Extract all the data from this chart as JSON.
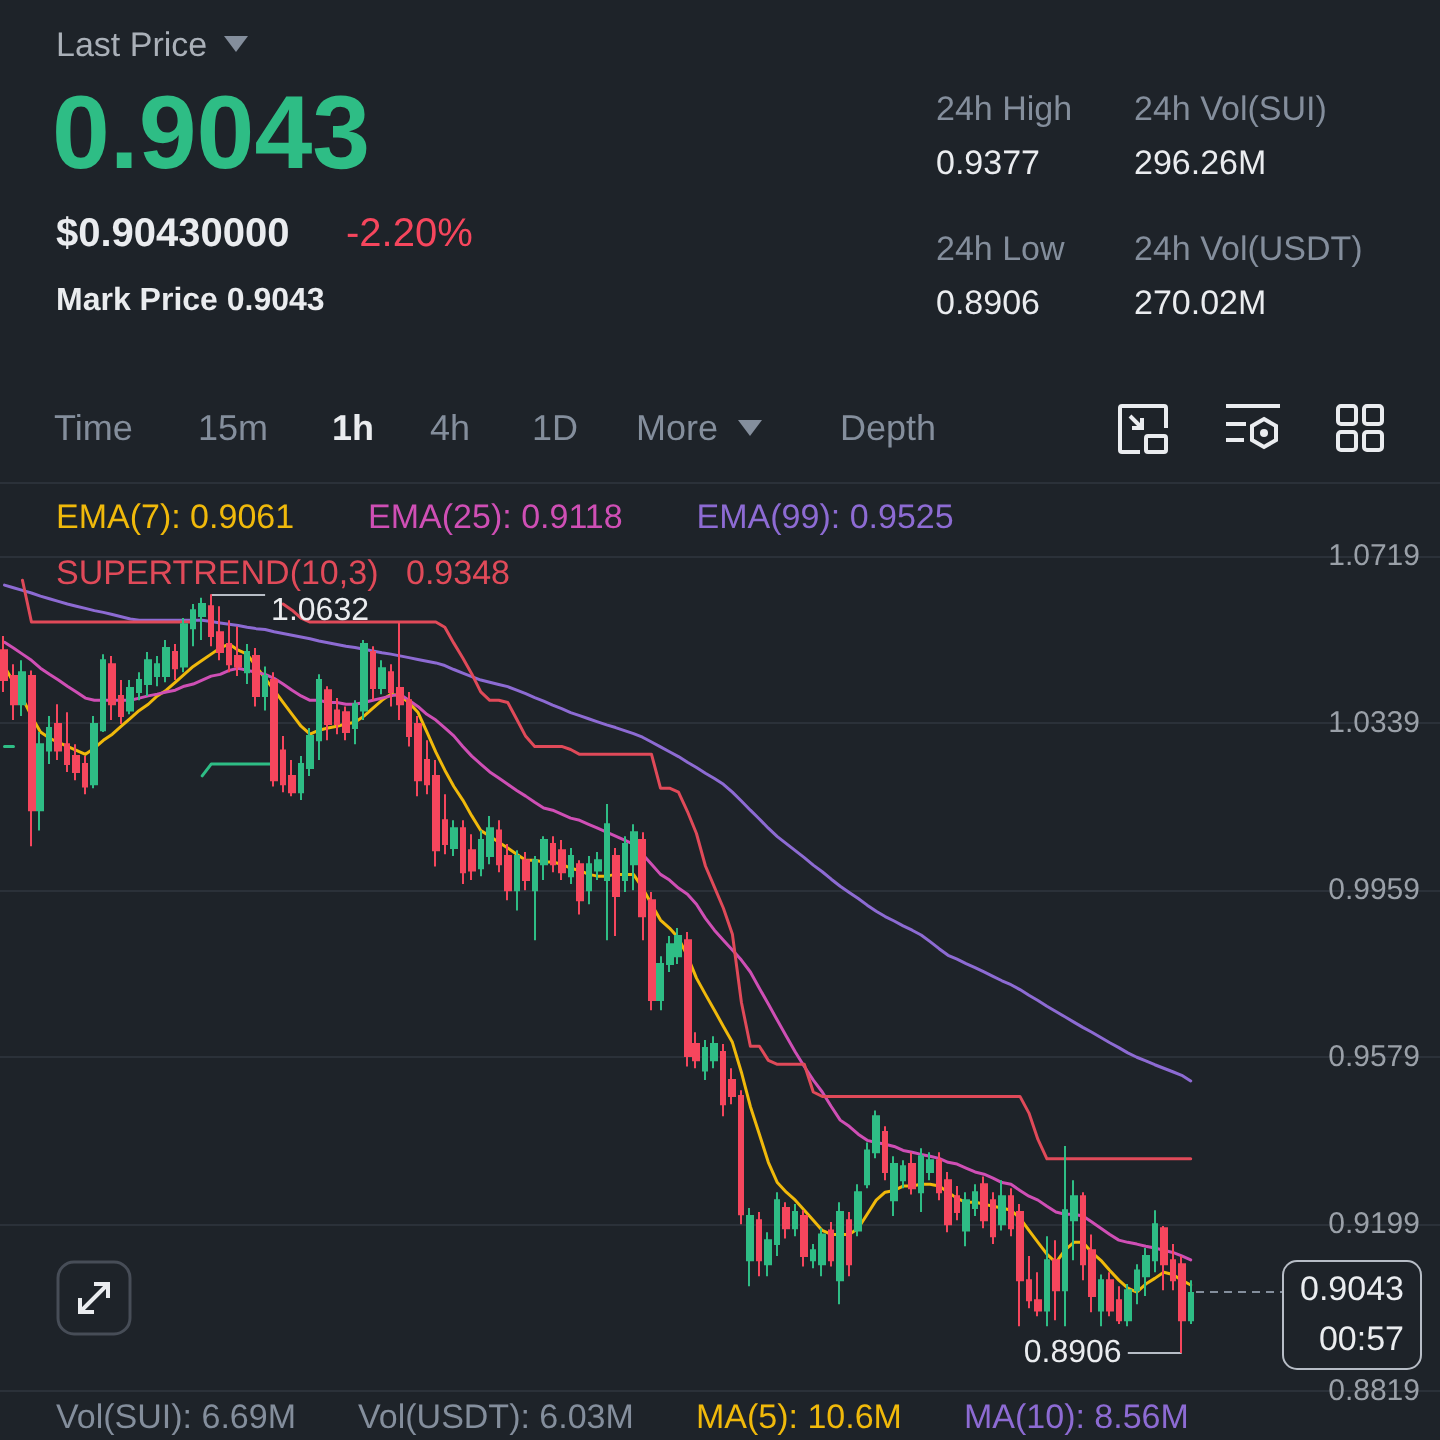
{
  "chart_data": {
    "type": "candlestick",
    "title": "Last Price",
    "subtitle": "0.9043",
    "annotations": [
      "$0.90430000",
      "-2.20%",
      "Mark Price 0.9043",
      "24h High",
      "0.9377",
      "24h Vol(SUI)",
      "296.26M",
      "24h Low",
      "0.8906",
      "24h Vol(USDT)",
      "270.02M",
      "Time",
      "15m",
      "1h",
      "4h",
      "1D",
      "More",
      "Depth",
      "0.9348",
      "Vol(SUI): 6.69M",
      "Vol(USDT): 6.03M",
      "MA(5): 10.6M",
      "MA(10): 8.56M",
      "1.0632",
      "0.8906",
      "0.9043\n00:57"
    ],
    "categories": [
      null,
      null,
      null,
      null,
      null,
      null,
      null,
      null,
      null,
      null,
      null,
      null,
      null,
      null,
      null,
      null,
      null,
      null,
      null,
      null,
      null,
      null,
      null,
      null,
      null,
      null,
      null,
      null,
      null,
      null,
      null,
      null,
      null,
      null,
      null,
      null,
      null,
      null,
      null,
      null,
      null,
      null,
      null,
      null,
      null,
      null,
      null,
      null,
      null,
      null,
      null,
      null,
      null,
      null,
      null,
      null,
      null,
      null,
      null,
      null,
      null,
      null,
      null,
      null,
      null,
      null,
      null,
      null,
      null,
      null,
      null,
      null,
      null,
      null,
      null,
      null,
      null,
      null,
      null,
      null,
      null,
      null,
      null,
      null,
      null,
      null,
      null,
      null,
      null,
      null,
      null,
      null,
      null,
      null,
      null,
      null,
      null,
      null,
      null,
      null,
      null,
      null,
      null,
      null,
      null,
      null,
      null,
      null,
      null,
      null,
      null,
      null,
      null,
      null,
      null,
      null,
      null,
      null,
      null,
      null,
      null,
      null,
      null,
      null,
      null,
      null,
      null,
      null,
      null,
      null,
      null,
      null,
      null
    ],
    "ohlc": [
      [
        1.0505,
        1.0537,
        1.041,
        1.0437
      ],
      [
        1.0446,
        1.0473,
        1.0346,
        1.0382
      ],
      [
        1.0382,
        1.0482,
        1.0355,
        1.0455
      ],
      [
        1.0446,
        1.0459,
        1.0059,
        1.0141
      ],
      [
        1.0141,
        1.0319,
        1.0095,
        1.0291
      ],
      [
        1.0277,
        1.0355,
        1.0246,
        1.0328
      ],
      [
        1.0337,
        1.0382,
        1.0255,
        1.0277
      ],
      [
        1.0291,
        1.0364,
        1.0228,
        1.0246
      ],
      [
        1.0264,
        1.0291,
        1.0209,
        1.0228
      ],
      [
        1.0246,
        1.0264,
        1.0177,
        1.0195
      ],
      [
        1.02,
        1.0355,
        1.0191,
        1.0337
      ],
      [
        1.0323,
        1.0496,
        1.0319,
        1.0482
      ],
      [
        1.0473,
        1.0492,
        1.0346,
        1.0382
      ],
      [
        1.0401,
        1.0437,
        1.0337,
        1.0355
      ],
      [
        1.0368,
        1.0437,
        1.0359,
        1.0419
      ],
      [
        1.041,
        1.0455,
        1.0391,
        1.0437
      ],
      [
        1.0428,
        1.0501,
        1.0401,
        1.0482
      ],
      [
        1.0446,
        1.0492,
        1.0423,
        1.0473
      ],
      [
        1.0446,
        1.0528,
        1.0432,
        1.051
      ],
      [
        1.0501,
        1.0519,
        1.0437,
        1.0464
      ],
      [
        1.0468,
        1.0578,
        1.0455,
        1.0564
      ],
      [
        1.0555,
        1.061,
        1.0514,
        1.0596
      ],
      [
        1.0583,
        1.0624,
        1.0528,
        1.061
      ],
      [
        1.0605,
        1.0632,
        1.0514,
        1.0537
      ],
      [
        1.0546,
        1.0605,
        1.0482,
        1.0501
      ],
      [
        1.0519,
        1.0573,
        1.0455,
        1.0473
      ],
      [
        1.0492,
        1.0559,
        1.0446,
        1.0468
      ],
      [
        1.0455,
        1.0519,
        1.0428,
        1.0501
      ],
      [
        1.0492,
        1.051,
        1.0377,
        1.0401
      ],
      [
        1.0401,
        1.0468,
        1.0368,
        1.0446
      ],
      [
        1.0437,
        1.0455,
        1.0195,
        1.0209
      ],
      [
        1.0277,
        1.031,
        1.0182,
        1.02
      ],
      [
        1.0219,
        1.0255,
        1.0173,
        1.0182
      ],
      [
        1.0182,
        1.0264,
        1.0164,
        1.0246
      ],
      [
        1.0237,
        1.0328,
        1.0219,
        1.031
      ],
      [
        1.03,
        1.045,
        1.0255,
        1.0437
      ],
      [
        1.0414,
        1.0423,
        1.03,
        1.0337
      ],
      [
        1.0368,
        1.0396,
        1.0314,
        1.0337
      ],
      [
        1.0364,
        1.0377,
        1.03,
        1.0319
      ],
      [
        1.0328,
        1.0391,
        1.0291,
        1.0382
      ],
      [
        1.0368,
        1.0528,
        1.0346,
        1.0519
      ],
      [
        1.0501,
        1.0514,
        1.0391,
        1.0419
      ],
      [
        1.0419,
        1.0482,
        1.0405,
        1.0464
      ],
      [
        1.0455,
        1.0473,
        1.0377,
        1.041
      ],
      [
        1.0419,
        1.0568,
        1.0346,
        1.0382
      ],
      [
        1.0391,
        1.041,
        1.0286,
        1.031
      ],
      [
        1.0337,
        1.0355,
        1.0173,
        1.0209
      ],
      [
        1.0255,
        1.03,
        1.0177,
        1.02
      ],
      [
        1.0219,
        1.0255,
        1.0013,
        1.005
      ],
      [
        1.0118,
        1.0177,
        1.0041,
        1.0064
      ],
      [
        1.0055,
        1.0118,
        1.0037,
        1.01
      ],
      [
        1.01,
        1.0118,
        0.9973,
        1.0
      ],
      [
        1.005,
        1.0086,
        0.9982,
        1.0004
      ],
      [
        1.0009,
        1.0095,
        0.9991,
        1.0073
      ],
      [
        1.0037,
        1.0128,
        1.0018,
        1.01
      ],
      [
        1.0095,
        1.0118,
        1.0,
        1.0018
      ],
      [
        1.0037,
        1.0064,
        0.9936,
        0.9959
      ],
      [
        0.9959,
        1.005,
        0.9913,
        1.0037
      ],
      [
        1.0027,
        1.0046,
        0.9959,
        0.9982
      ],
      [
        0.9959,
        1.0037,
        0.9845,
        1.0027
      ],
      [
        1.0018,
        1.0082,
        0.9982,
        1.0073
      ],
      [
        1.0064,
        1.0082,
        1.0,
        1.0018
      ],
      [
        1.005,
        1.0073,
        0.9982,
        1.0
      ],
      [
        0.9991,
        1.0055,
        0.9973,
        1.0037
      ],
      [
        1.0018,
        1.0027,
        0.9904,
        0.9936
      ],
      [
        0.9959,
        1.0037,
        0.9927,
        1.0018
      ],
      [
        1.0004,
        1.0046,
        0.9982,
        1.0027
      ],
      [
        0.9982,
        1.0155,
        0.9845,
        1.0109
      ],
      [
        1.0037,
        1.0055,
        0.9855,
        0.9946
      ],
      [
        0.9982,
        1.0082,
        0.9955,
        1.0064
      ],
      [
        1.0018,
        1.0109,
        0.9959,
        1.0091
      ],
      [
        1.0073,
        1.0091,
        0.9845,
        0.99
      ],
      [
        0.9936,
        0.9955,
        0.9686,
        0.9709
      ],
      [
        0.9709,
        0.9809,
        0.9686,
        0.9791
      ],
      [
        0.9791,
        0.9855,
        0.9773,
        0.9836
      ],
      [
        0.9809,
        0.9873,
        0.9791,
        0.9855
      ],
      [
        0.9845,
        0.9864,
        0.9558,
        0.9582
      ],
      [
        0.9609,
        0.9636,
        0.9554,
        0.9572
      ],
      [
        0.9549,
        0.9618,
        0.9527,
        0.96
      ],
      [
        0.9572,
        0.9627,
        0.9554,
        0.9609
      ],
      [
        0.9591,
        0.9609,
        0.9445,
        0.9472
      ],
      [
        0.9527,
        0.9554,
        0.9472,
        0.9491
      ],
      [
        0.9491,
        0.9504,
        0.9199,
        0.9222
      ],
      [
        0.9117,
        0.9236,
        0.9058,
        0.9218
      ],
      [
        0.9208,
        0.9227,
        0.9081,
        0.9117
      ],
      [
        0.9108,
        0.9181,
        0.9081,
        0.9163
      ],
      [
        0.9154,
        0.9272,
        0.9127,
        0.9254
      ],
      [
        0.9236,
        0.9249,
        0.9167,
        0.919
      ],
      [
        0.919,
        0.9245,
        0.9172,
        0.9227
      ],
      [
        0.9218,
        0.9231,
        0.9103,
        0.9127
      ],
      [
        0.9117,
        0.9154,
        0.9099,
        0.914
      ],
      [
        0.9108,
        0.919,
        0.9081,
        0.9176
      ],
      [
        0.9185,
        0.9204,
        0.9103,
        0.9117
      ],
      [
        0.9072,
        0.9249,
        0.9017,
        0.9227
      ],
      [
        0.9208,
        0.9227,
        0.9081,
        0.9108
      ],
      [
        0.9185,
        0.929,
        0.9172,
        0.9272
      ],
      [
        0.929,
        0.9385,
        0.9281,
        0.9367
      ],
      [
        0.9363,
        0.9458,
        0.9349,
        0.9445
      ],
      [
        0.9409,
        0.9422,
        0.9299,
        0.9318
      ],
      [
        0.9254,
        0.9354,
        0.9218,
        0.9336
      ],
      [
        0.9299,
        0.9345,
        0.9281,
        0.9331
      ],
      [
        0.9336,
        0.9363,
        0.9267,
        0.9281
      ],
      [
        0.9272,
        0.9372,
        0.9227,
        0.9354
      ],
      [
        0.9318,
        0.9363,
        0.9299,
        0.9345
      ],
      [
        0.9345,
        0.9363,
        0.9254,
        0.9272
      ],
      [
        0.9299,
        0.9318,
        0.9181,
        0.9199
      ],
      [
        0.9263,
        0.9286,
        0.9208,
        0.9227
      ],
      [
        0.9185,
        0.9272,
        0.9149,
        0.9254
      ],
      [
        0.9236,
        0.929,
        0.9218,
        0.9272
      ],
      [
        0.929,
        0.9308,
        0.919,
        0.9208
      ],
      [
        0.9254,
        0.9272,
        0.9154,
        0.9172
      ],
      [
        0.9199,
        0.9299,
        0.9185,
        0.9263
      ],
      [
        0.9263,
        0.9281,
        0.9172,
        0.919
      ],
      [
        0.9227,
        0.9245,
        0.8967,
        0.9072
      ],
      [
        0.9072,
        0.9127,
        0.9008,
        0.9026
      ],
      [
        0.9026,
        0.909,
        0.899,
        0.9003
      ],
      [
        0.9003,
        0.9172,
        0.8967,
        0.9117
      ],
      [
        0.9117,
        0.9163,
        0.8981,
        0.9049
      ],
      [
        0.9049,
        0.9377,
        0.8967,
        0.9231
      ],
      [
        0.9208,
        0.9299,
        0.9117,
        0.9263
      ],
      [
        0.9263,
        0.9272,
        0.9072,
        0.9108
      ],
      [
        0.914,
        0.9176,
        0.8999,
        0.9036
      ],
      [
        0.9003,
        0.9085,
        0.8967,
        0.9072
      ],
      [
        0.9072,
        0.909,
        0.899,
        0.9003
      ],
      [
        0.9026,
        0.9058,
        0.8972,
        0.8981
      ],
      [
        0.8981,
        0.9063,
        0.8967,
        0.9049
      ],
      [
        0.9049,
        0.9108,
        0.9017,
        0.9094
      ],
      [
        0.9081,
        0.9145,
        0.9036,
        0.9127
      ],
      [
        0.9117,
        0.9231,
        0.909,
        0.9199
      ],
      [
        0.919,
        0.9195,
        0.9049,
        0.9108
      ],
      [
        0.9117,
        0.9154,
        0.9049,
        0.9072
      ],
      [
        0.9108,
        0.9127,
        0.8906,
        0.8981
      ],
      [
        0.8981,
        0.9072,
        0.8972,
        0.9043
      ]
    ],
    "colors": [
      "#f6465d",
      "#f6465d",
      "#2ebd85",
      "#f6465d",
      "#2ebd85",
      "#2ebd85",
      "#f6465d",
      "#f6465d",
      "#f6465d",
      "#f6465d",
      "#2ebd85",
      "#2ebd85",
      "#f6465d",
      "#f6465d",
      "#2ebd85",
      "#2ebd85",
      "#2ebd85",
      "#2ebd85",
      "#2ebd85",
      "#f6465d",
      "#2ebd85",
      "#2ebd85",
      "#2ebd85",
      "#f6465d",
      "#f6465d",
      "#f6465d",
      "#f6465d",
      "#2ebd85",
      "#f6465d",
      "#2ebd85",
      "#f6465d",
      "#f6465d",
      "#f6465d",
      "#2ebd85",
      "#2ebd85",
      "#2ebd85",
      "#f6465d",
      "#f6465d",
      "#f6465d",
      "#2ebd85",
      "#2ebd85",
      "#f6465d",
      "#2ebd85",
      "#f6465d",
      "#f6465d",
      "#f6465d",
      "#f6465d",
      "#f6465d",
      "#f6465d",
      "#f6465d",
      "#2ebd85",
      "#f6465d",
      "#f6465d",
      "#2ebd85",
      "#2ebd85",
      "#f6465d",
      "#f6465d",
      "#2ebd85",
      "#f6465d",
      "#2ebd85",
      "#2ebd85",
      "#f6465d",
      "#f6465d",
      "#2ebd85",
      "#f6465d",
      "#2ebd85",
      "#2ebd85",
      "#2ebd85",
      "#f6465d",
      "#2ebd85",
      "#2ebd85",
      "#f6465d",
      "#f6465d",
      "#2ebd85",
      "#2ebd85",
      "#2ebd85",
      "#f6465d",
      "#f6465d",
      "#2ebd85",
      "#2ebd85",
      "#f6465d",
      "#f6465d",
      "#f6465d",
      "#2ebd85",
      "#f6465d",
      "#2ebd85",
      "#2ebd85",
      "#f6465d",
      "#2ebd85",
      "#f6465d",
      "#2ebd85",
      "#2ebd85",
      "#f6465d",
      "#2ebd85",
      "#f6465d",
      "#2ebd85",
      "#2ebd85",
      "#2ebd85",
      "#f6465d",
      "#2ebd85",
      "#2ebd85",
      "#f6465d",
      "#2ebd85",
      "#2ebd85",
      "#f6465d",
      "#f6465d",
      "#f6465d",
      "#2ebd85",
      "#2ebd85",
      "#f6465d",
      "#f6465d",
      "#2ebd85",
      "#f6465d",
      "#f6465d",
      "#f6465d",
      "#f6465d",
      "#2ebd85",
      "#f6465d",
      "#2ebd85",
      "#2ebd85",
      "#f6465d",
      "#f6465d",
      "#2ebd85",
      "#f6465d",
      "#f6465d",
      "#2ebd85",
      "#2ebd85",
      "#2ebd85",
      "#2ebd85",
      "#f6465d",
      "#f6465d",
      "#f6465d",
      "#2ebd85"
    ],
    "series": [
      {
        "type": "line",
        "name": "EMA(7): 0.9061",
        "color": "#f0b90b",
        "values": [
          1.0468,
          1.0432,
          1.0396,
          1.0355,
          1.0319,
          1.0305,
          1.0295,
          1.0286,
          1.0277,
          1.0268,
          1.0282,
          1.03,
          1.0314,
          1.0332,
          1.035,
          1.0368,
          1.0382,
          1.0401,
          1.0414,
          1.0432,
          1.045,
          1.0468,
          1.0482,
          1.0496,
          1.051,
          1.0519,
          1.0505,
          1.0496,
          1.0468,
          1.0441,
          1.0414,
          1.0386,
          1.0359,
          1.0332,
          1.0314,
          1.0323,
          1.0328,
          1.0332,
          1.0337,
          1.0341,
          1.0355,
          1.0373,
          1.0391,
          1.0405,
          1.0401,
          1.0386,
          1.0364,
          1.0319,
          1.0273,
          1.0232,
          1.0195,
          1.0164,
          1.0128,
          1.0095,
          1.0082,
          1.0068,
          1.0055,
          1.0041,
          1.0027,
          1.0027,
          1.0023,
          1.0023,
          1.0018,
          1.0009,
          1.0004,
          0.9995,
          0.9991,
          0.9991,
          0.9995,
          0.9995,
          0.9995,
          0.9964,
          0.9927,
          0.9891,
          0.9873,
          0.985,
          0.9809,
          0.9759,
          0.9722,
          0.9686,
          0.9649,
          0.9613,
          0.9545,
          0.9467,
          0.9404,
          0.934,
          0.9294,
          0.9272,
          0.9254,
          0.9231,
          0.9208,
          0.9185,
          0.9176,
          0.9176,
          0.9176,
          0.919,
          0.9222,
          0.9254,
          0.9272,
          0.9276,
          0.9286,
          0.9286,
          0.929,
          0.929,
          0.9286,
          0.9272,
          0.9258,
          0.9249,
          0.9249,
          0.9245,
          0.924,
          0.9236,
          0.9231,
          0.9213,
          0.9185,
          0.9158,
          0.9131,
          0.9112,
          0.914,
          0.9158,
          0.9158,
          0.9135,
          0.9117,
          0.9094,
          0.9072,
          0.9054,
          0.9045,
          0.9063,
          0.9076,
          0.909,
          0.9085,
          0.9072,
          0.9061
        ]
      },
      {
        "type": "line",
        "name": "EMA(25): 0.9118",
        "color": "#cf4fb5",
        "values": [
          1.0523,
          1.051,
          1.0496,
          1.0482,
          1.0464,
          1.045,
          1.0437,
          1.0423,
          1.041,
          1.0396,
          1.0391,
          1.0391,
          1.0391,
          1.0391,
          1.0391,
          1.0396,
          1.0401,
          1.0405,
          1.041,
          1.0414,
          1.0423,
          1.0428,
          1.0437,
          1.0446,
          1.045,
          1.0459,
          1.0464,
          1.0459,
          1.0455,
          1.045,
          1.0441,
          1.0428,
          1.0414,
          1.0401,
          1.0391,
          1.0391,
          1.0386,
          1.0386,
          1.0382,
          1.0382,
          1.0386,
          1.0391,
          1.0396,
          1.0401,
          1.0405,
          1.0391,
          1.0377,
          1.0359,
          1.0346,
          1.0328,
          1.031,
          1.0286,
          1.0264,
          1.0246,
          1.0228,
          1.0214,
          1.02,
          1.0186,
          1.0173,
          1.0159,
          1.0146,
          1.0141,
          1.0132,
          1.0123,
          1.0118,
          1.0109,
          1.01,
          1.0091,
          1.0082,
          1.0073,
          1.0064,
          1.0041,
          1.0018,
          0.9995,
          0.9982,
          0.9964,
          0.995,
          0.9927,
          0.9895,
          0.9868,
          0.9845,
          0.9823,
          0.98,
          0.9773,
          0.9736,
          0.97,
          0.9663,
          0.9627,
          0.9591,
          0.9558,
          0.9527,
          0.95,
          0.9467,
          0.9436,
          0.9422,
          0.9404,
          0.939,
          0.9385,
          0.9381,
          0.9376,
          0.9367,
          0.9363,
          0.9358,
          0.9354,
          0.9349,
          0.934,
          0.9336,
          0.9327,
          0.9318,
          0.9313,
          0.9304,
          0.9294,
          0.929,
          0.9276,
          0.9263,
          0.9254,
          0.924,
          0.9227,
          0.9222,
          0.9222,
          0.9218,
          0.9204,
          0.919,
          0.9176,
          0.9163,
          0.9158,
          0.9154,
          0.9149,
          0.9145,
          0.914,
          0.9135,
          0.9127,
          0.9118
        ]
      },
      {
        "type": "line",
        "name": "EMA(99): 0.9525",
        "color": "#8d6bd3",
        "values": [
          1.0653,
          1.0647,
          1.0641,
          1.0635,
          1.0628,
          1.0622,
          1.0616,
          1.061,
          1.0605,
          1.06,
          1.0595,
          1.0591,
          1.0586,
          1.0581,
          1.0576,
          1.0573,
          1.0573,
          1.0573,
          1.0573,
          1.0573,
          1.0573,
          1.0573,
          1.0573,
          1.057,
          1.0567,
          1.0564,
          1.0561,
          1.0557,
          1.0554,
          1.0552,
          1.0547,
          1.0543,
          1.0539,
          1.0535,
          1.0531,
          1.0526,
          1.0522,
          1.0518,
          1.0514,
          1.0511,
          1.0507,
          1.0503,
          1.0499,
          1.0496,
          1.0492,
          1.0488,
          1.0484,
          1.048,
          1.0476,
          1.047,
          1.0461,
          1.0453,
          1.0445,
          1.0437,
          1.0432,
          1.0427,
          1.0422,
          1.0414,
          1.0406,
          1.0397,
          1.0389,
          1.038,
          1.0372,
          1.0363,
          1.0356,
          1.0349,
          1.0342,
          1.0335,
          1.0329,
          1.0322,
          1.0315,
          1.0307,
          1.0296,
          1.0285,
          1.0274,
          1.0263,
          1.025,
          1.0238,
          1.0225,
          1.0213,
          1.02,
          1.0182,
          1.0162,
          1.0141,
          1.0121,
          1.01,
          1.0081,
          1.0065,
          1.0049,
          1.0033,
          1.0016,
          1.0001,
          0.9984,
          0.9968,
          0.9954,
          0.994,
          0.9925,
          0.9911,
          0.9899,
          0.9889,
          0.9878,
          0.9868,
          0.9857,
          0.9842,
          0.9826,
          0.9811,
          0.9802,
          0.9792,
          0.9783,
          0.9773,
          0.9763,
          0.9753,
          0.9744,
          0.9733,
          0.972,
          0.9708,
          0.9695,
          0.9683,
          0.9671,
          0.9659,
          0.9647,
          0.9636,
          0.9624,
          0.9612,
          0.9601,
          0.9589,
          0.9579,
          0.9571,
          0.9562,
          0.9554,
          0.9546,
          0.9538,
          0.9525
        ]
      },
      {
        "type": "line",
        "name": "SUPERTREND(10,3)",
        "color": "#e04a59",
        "values": [
          null,
          null,
          1.0664,
          1.0569,
          1.0569,
          1.0569,
          1.0569,
          1.0569,
          1.0569,
          1.0569,
          1.0569,
          1.0569,
          1.0569,
          1.0569,
          1.0569,
          1.0569,
          1.0569,
          1.0569,
          1.0569,
          1.0569,
          1.0569,
          1.0569,
          null,
          null,
          null,
          null,
          null,
          null,
          null,
          null,
          null,
          1.061,
          1.0596,
          1.0578,
          1.0569,
          1.0569,
          1.0569,
          1.0569,
          1.0569,
          1.0569,
          1.0569,
          1.0569,
          1.0569,
          1.0569,
          1.0569,
          1.0569,
          1.0569,
          1.0569,
          1.0569,
          1.0557,
          1.0521,
          1.0487,
          1.0451,
          1.041,
          1.0391,
          1.0391,
          1.0386,
          1.0348,
          1.0309,
          1.0286,
          1.0286,
          1.0286,
          1.0286,
          1.0279,
          1.0268,
          1.0268,
          1.0268,
          1.0268,
          1.0268,
          1.0268,
          1.0268,
          1.0268,
          1.0268,
          1.0191,
          1.0191,
          1.0182,
          1.0138,
          1.0088,
          1.0014,
          0.9966,
          0.9918,
          0.9859,
          0.9704,
          0.9604,
          0.9604,
          0.9572,
          0.9563,
          0.9563,
          0.9563,
          0.9563,
          0.95,
          0.949,
          0.949,
          0.949,
          0.949,
          0.949,
          0.949,
          0.949,
          0.949,
          0.949,
          0.949,
          0.949,
          0.949,
          0.949,
          0.949,
          0.949,
          0.949,
          0.949,
          0.949,
          0.949,
          0.949,
          0.949,
          0.949,
          0.949,
          0.9452,
          0.9392,
          0.9348,
          0.9348,
          0.9348,
          0.9348,
          0.9348,
          0.9348,
          0.9348,
          0.9348,
          0.9348,
          0.9348,
          0.9348,
          0.9348,
          0.9348,
          0.9348,
          0.9348,
          0.9348,
          0.9348
        ]
      },
      {
        "type": "line",
        "color": "#2ebd85",
        "values": [
          1.0286,
          1.0286,
          null,
          null,
          null,
          null,
          null,
          null,
          null,
          null,
          null,
          null,
          null,
          null,
          null,
          null,
          null,
          null,
          null,
          null,
          null,
          null,
          1.0219,
          1.0246,
          1.0246,
          1.0246,
          1.0246,
          1.0246,
          1.0246,
          1.0246,
          1.0246,
          null,
          null,
          null,
          null,
          null,
          null,
          null,
          null,
          null,
          null,
          null,
          null,
          null,
          null,
          null,
          null,
          null,
          null,
          null,
          null,
          null,
          null,
          null,
          null,
          null,
          null,
          null,
          null,
          null,
          null,
          null,
          null,
          null,
          null,
          null,
          null,
          null,
          null,
          null,
          null,
          null,
          null,
          null,
          null,
          null,
          null,
          null,
          null,
          null,
          null,
          null,
          null,
          null,
          null,
          null,
          null,
          null,
          null,
          null,
          null,
          null,
          null,
          null,
          null,
          null,
          null,
          null,
          null,
          null,
          null,
          null,
          null,
          null,
          null,
          null,
          null,
          null,
          null,
          null,
          null,
          null,
          null,
          null,
          null,
          null,
          null,
          null,
          null,
          null,
          null,
          null,
          null,
          null,
          null,
          null,
          null,
          null,
          null,
          null,
          null,
          null,
          null
        ]
      }
    ],
    "ylim": [
      0.8813,
      1.0883
    ],
    "yticks": [
      0.8819,
      0.9199,
      0.9579,
      0.9959,
      1.0339,
      1.0719
    ],
    "grid": "y",
    "legend": "top left",
    "tick_labels": "y"
  }
}
